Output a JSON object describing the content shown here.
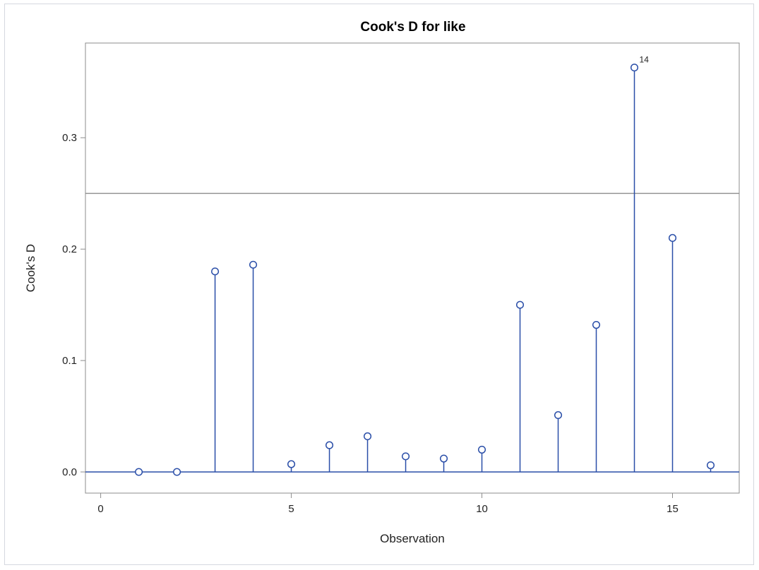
{
  "chart_data": {
    "type": "scatter",
    "style": "needle",
    "title": "Cook's D for like",
    "xlabel": "Observation",
    "ylabel": "Cook's D",
    "xlim": [
      -0.4,
      16.75
    ],
    "ylim": [
      -0.019,
      0.385
    ],
    "xticks": [
      0,
      5,
      10,
      15
    ],
    "xtick_labels": [
      "0",
      "5",
      "10",
      "15"
    ],
    "yticks": [
      0.0,
      0.1,
      0.2,
      0.3
    ],
    "ytick_labels": [
      "0.0",
      "0.1",
      "0.2",
      "0.3"
    ],
    "reference_line": 0.25,
    "grid": false,
    "series": [
      {
        "x": [
          1,
          2,
          3,
          4,
          5,
          6,
          7,
          8,
          9,
          10,
          11,
          12,
          13,
          14,
          15,
          16
        ],
        "values": [
          0.0,
          0.0,
          0.18,
          0.186,
          0.007,
          0.024,
          0.032,
          0.014,
          0.012,
          0.02,
          0.15,
          0.051,
          0.132,
          0.363,
          0.21,
          0.006
        ]
      }
    ],
    "annotations": [
      {
        "x": 14,
        "y": 0.363,
        "text": "14"
      }
    ],
    "colors": {
      "series": "#2a4ea8",
      "axis": "#8c8c8c",
      "reference": "#8c8c8c"
    }
  }
}
